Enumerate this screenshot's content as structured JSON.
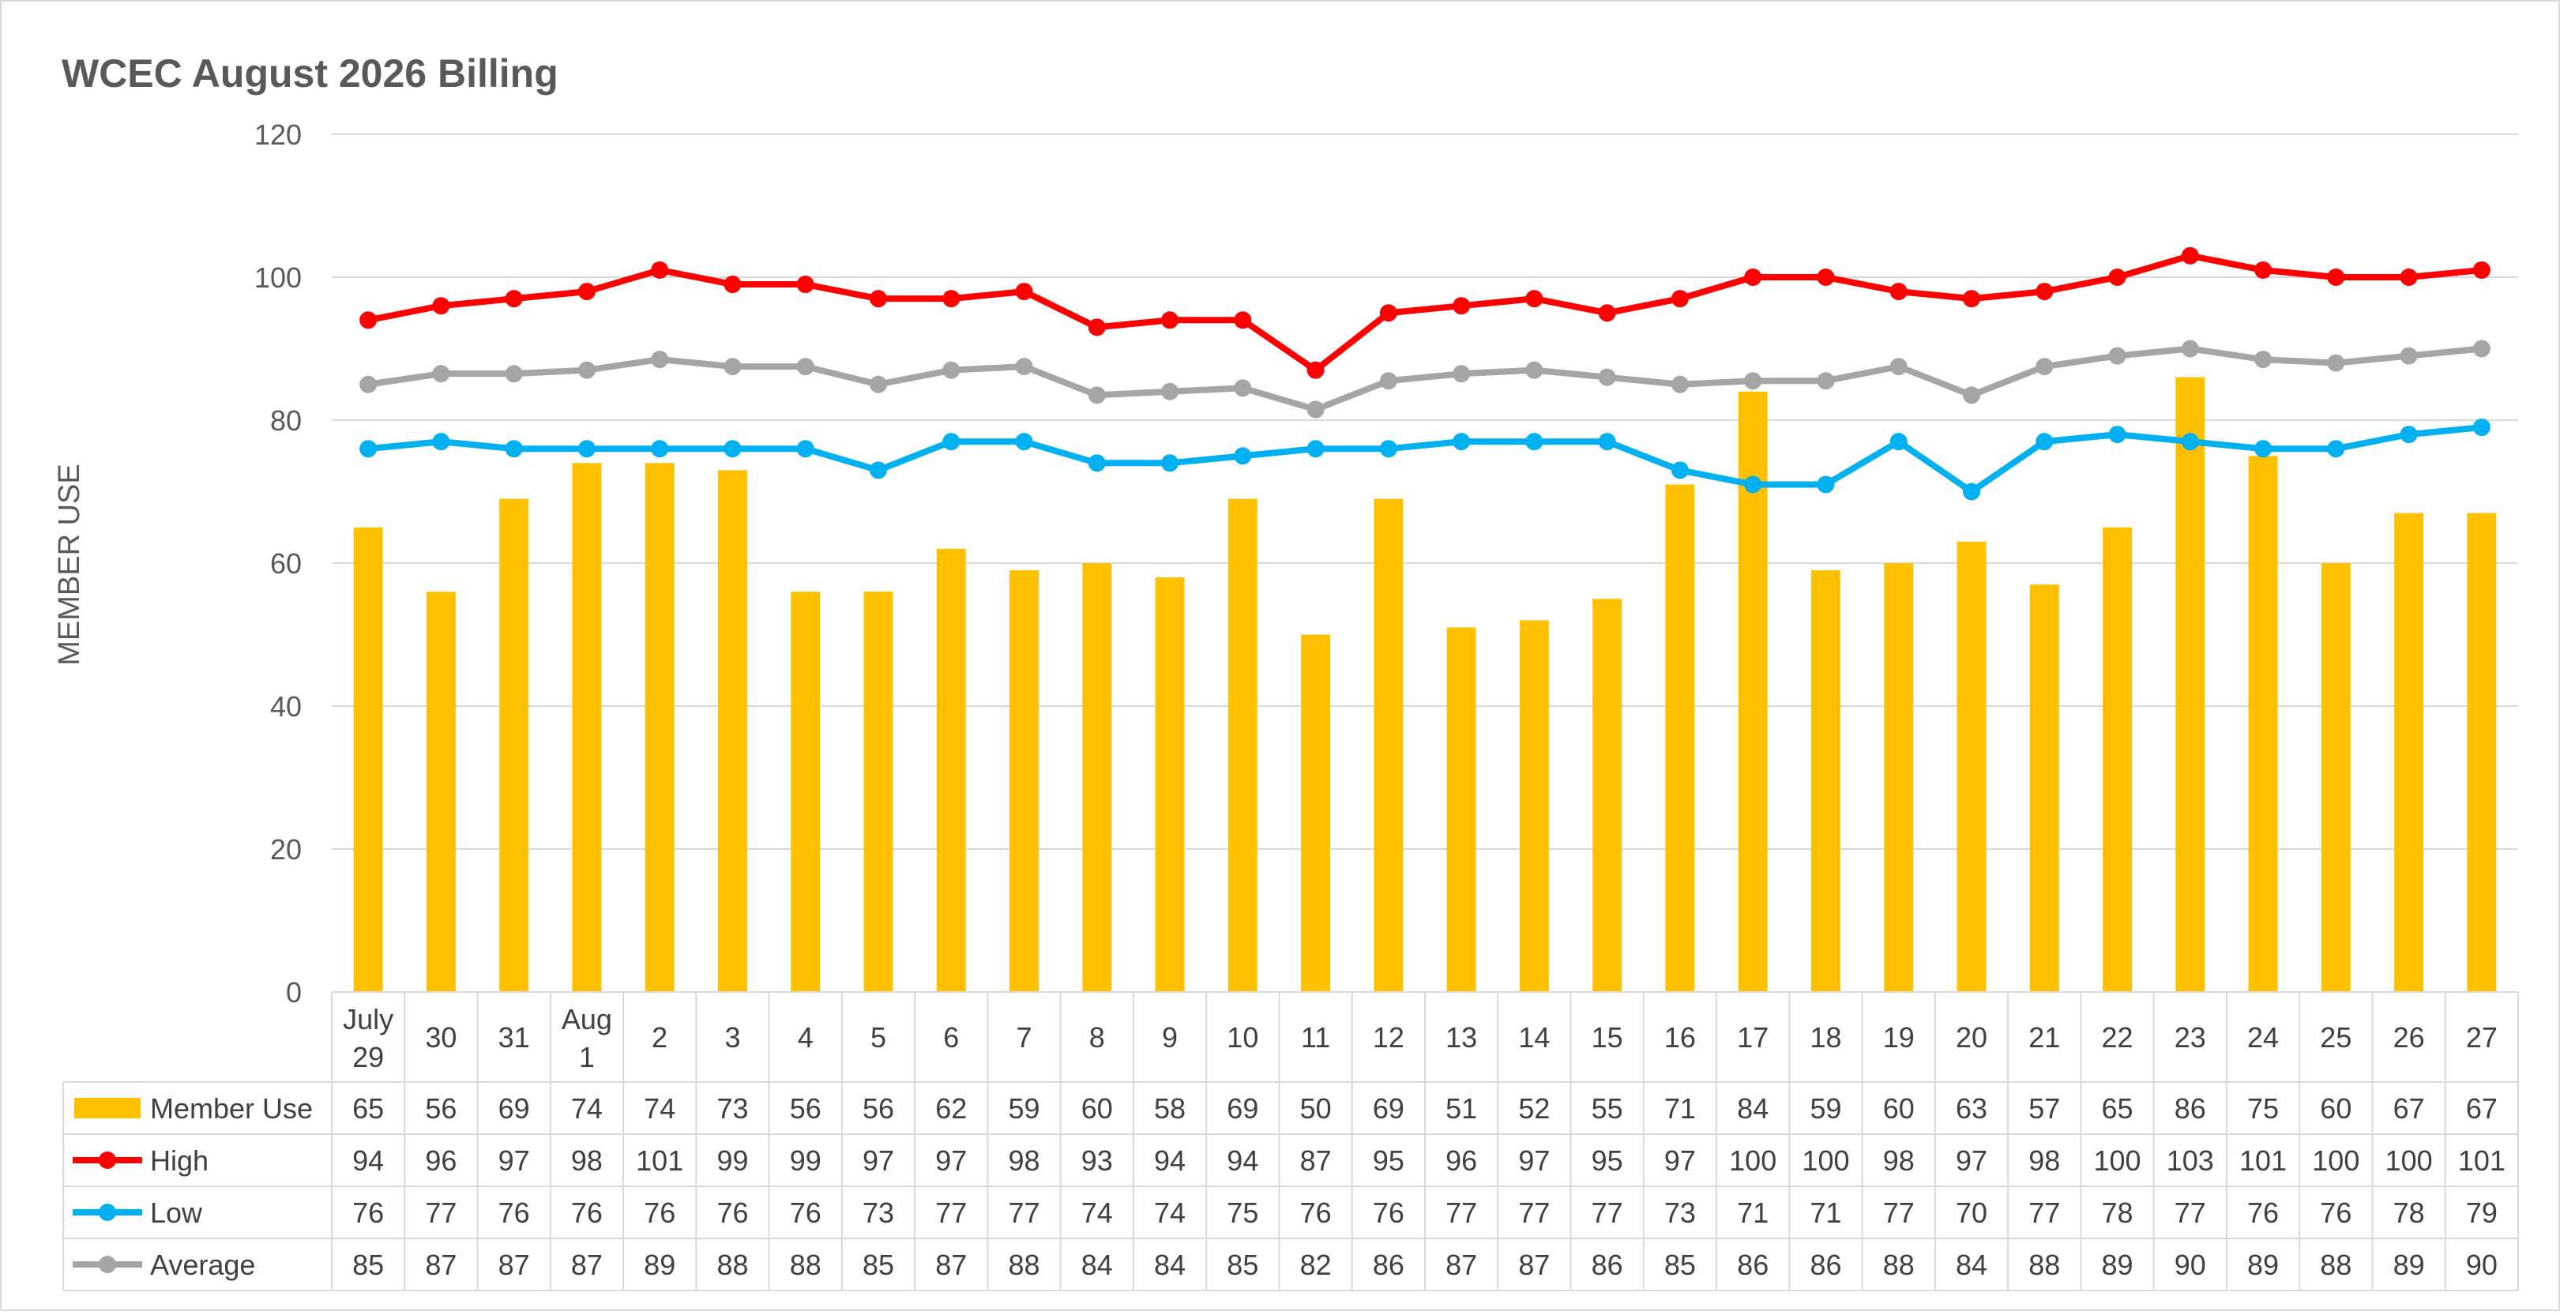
{
  "chart_data": {
    "type": "bar",
    "title": "WCEC August 2026 Billing",
    "ylabel": "MEMBER USE",
    "xlabel": "",
    "ylim": [
      0,
      120
    ],
    "yticks": [
      0,
      20,
      40,
      60,
      80,
      100,
      120
    ],
    "grid": true,
    "legend": "data-table",
    "categories": [
      [
        "July",
        "29"
      ],
      [
        "30"
      ],
      [
        "31"
      ],
      [
        "Aug",
        "1"
      ],
      [
        "2"
      ],
      [
        "3"
      ],
      [
        "4"
      ],
      [
        "5"
      ],
      [
        "6"
      ],
      [
        "7"
      ],
      [
        "8"
      ],
      [
        "9"
      ],
      [
        "10"
      ],
      [
        "11"
      ],
      [
        "12"
      ],
      [
        "13"
      ],
      [
        "14"
      ],
      [
        "15"
      ],
      [
        "16"
      ],
      [
        "17"
      ],
      [
        "18"
      ],
      [
        "19"
      ],
      [
        "20"
      ],
      [
        "21"
      ],
      [
        "22"
      ],
      [
        "23"
      ],
      [
        "24"
      ],
      [
        "25"
      ],
      [
        "26"
      ],
      [
        "27"
      ]
    ],
    "series": [
      {
        "name": "Member Use",
        "type": "bar",
        "color": "#FFC000",
        "values": [
          65,
          56,
          69,
          74,
          74,
          73,
          56,
          56,
          62,
          59,
          60,
          58,
          69,
          50,
          69,
          51,
          52,
          55,
          71,
          84,
          59,
          60,
          63,
          57,
          65,
          86,
          75,
          60,
          67,
          67
        ]
      },
      {
        "name": "High",
        "type": "line",
        "color": "#FF0000",
        "values": [
          94,
          96,
          97,
          98,
          101,
          99,
          99,
          97,
          97,
          98,
          93,
          94,
          94,
          87,
          95,
          96,
          97,
          95,
          97,
          100,
          100,
          98,
          97,
          98,
          100,
          103,
          101,
          100,
          100,
          101
        ]
      },
      {
        "name": "Low",
        "type": "line",
        "color": "#00B0F0",
        "values": [
          76,
          77,
          76,
          76,
          76,
          76,
          76,
          73,
          77,
          77,
          74,
          74,
          75,
          76,
          76,
          77,
          77,
          77,
          73,
          71,
          71,
          77,
          70,
          77,
          78,
          77,
          76,
          76,
          78,
          79
        ]
      },
      {
        "name": "Average",
        "type": "line",
        "color": "#A5A5A5",
        "values": [
          85,
          86.5,
          86.5,
          87,
          88.5,
          87.5,
          87.5,
          85,
          87,
          87.5,
          83.5,
          84,
          84.5,
          81.5,
          85.5,
          86.5,
          87,
          86,
          85,
          85.5,
          85.5,
          87.5,
          83.5,
          87.5,
          89,
          90,
          88.5,
          88,
          89,
          90
        ]
      }
    ],
    "table_values": {
      "Average": [
        85,
        87,
        87,
        87,
        89,
        88,
        88,
        85,
        87,
        88,
        84,
        84,
        85,
        82,
        86,
        87,
        87,
        86,
        85,
        86,
        86,
        88,
        84,
        88,
        89,
        90,
        89,
        88,
        89,
        90
      ]
    }
  }
}
